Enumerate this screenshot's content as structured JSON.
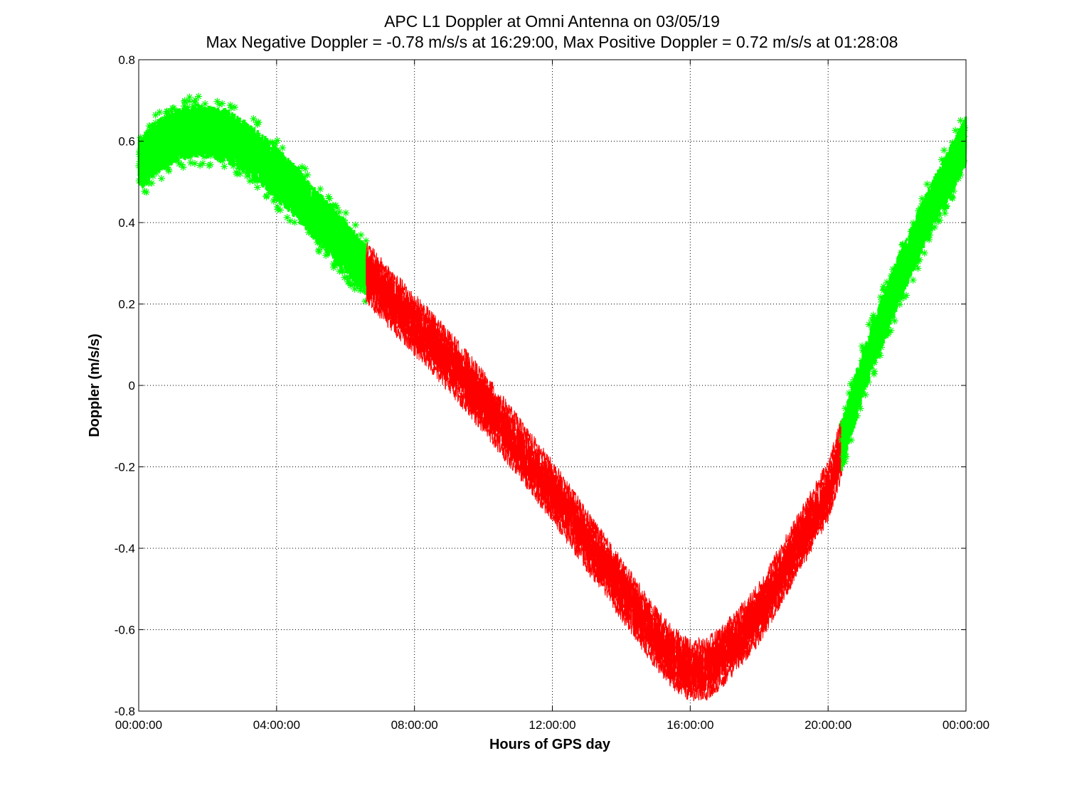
{
  "chart_data": {
    "type": "scatter",
    "title": "APC  L1 Doppler at Omni Antenna on 03/05/19",
    "subtitle": "Max Negative Doppler = -0.78 m/s/s  at 16:29:00,   Max Positive Doppler = 0.72 m/s/s  at 01:28:08",
    "xlabel": "Hours of GPS day",
    "ylabel": "Doppler (m/s/s)",
    "xlim": [
      0,
      24
    ],
    "ylim": [
      -0.8,
      0.8
    ],
    "grid": true,
    "x_ticks": [
      {
        "value": 0,
        "label": "00:00:00"
      },
      {
        "value": 4,
        "label": "04:00:00"
      },
      {
        "value": 8,
        "label": "08:00:00"
      },
      {
        "value": 12,
        "label": "12:00:00"
      },
      {
        "value": 16,
        "label": "16:00:00"
      },
      {
        "value": 20,
        "label": "20:00:00"
      },
      {
        "value": 24,
        "label": "00:00:00"
      }
    ],
    "y_ticks": [
      {
        "value": 0.8,
        "label": "0.8"
      },
      {
        "value": 0.6,
        "label": "0.6"
      },
      {
        "value": 0.4,
        "label": "0.4"
      },
      {
        "value": 0.2,
        "label": "0.2"
      },
      {
        "value": 0,
        "label": "0"
      },
      {
        "value": -0.2,
        "label": "-0.2"
      },
      {
        "value": -0.4,
        "label": "-0.4"
      },
      {
        "value": -0.6,
        "label": "-0.6"
      },
      {
        "value": -0.8,
        "label": "-0.8"
      }
    ],
    "series": [
      {
        "color": "#00ff00",
        "marker": "asterisk",
        "band_width": 0.09,
        "x": [
          0,
          0.5,
          1,
          1.5,
          2,
          2.5,
          3,
          3.5,
          4,
          4.5,
          5,
          5.5,
          6,
          6.6
        ],
        "y": [
          0.54,
          0.585,
          0.61,
          0.625,
          0.625,
          0.615,
          0.59,
          0.56,
          0.52,
          0.48,
          0.43,
          0.385,
          0.34,
          0.28
        ]
      },
      {
        "color": "#ff0000",
        "marker": "line",
        "band_width": 0.075,
        "x": [
          6.6,
          7,
          8,
          9,
          10,
          11,
          12,
          13,
          14,
          15,
          15.5,
          16,
          16.5,
          17,
          18,
          19,
          20,
          20.4
        ],
        "y": [
          0.28,
          0.24,
          0.15,
          0.06,
          -0.04,
          -0.15,
          -0.26,
          -0.38,
          -0.5,
          -0.62,
          -0.67,
          -0.7,
          -0.695,
          -0.66,
          -0.56,
          -0.41,
          -0.26,
          -0.15
        ]
      },
      {
        "color": "#00ff00",
        "marker": "asterisk",
        "band_width": 0.085,
        "x": [
          20.4,
          21,
          22,
          23,
          24
        ],
        "y": [
          -0.15,
          0.03,
          0.25,
          0.44,
          0.6
        ]
      }
    ]
  }
}
